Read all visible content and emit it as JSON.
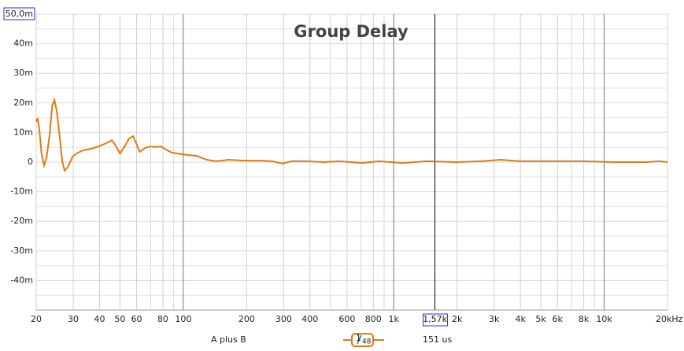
{
  "chart_data": {
    "type": "line",
    "title": "Group Delay",
    "xlog": true,
    "xlim": [
      20,
      20000
    ],
    "ylim": [
      -50,
      50
    ],
    "xticks": [
      20,
      30,
      40,
      50,
      60,
      80,
      100,
      200,
      300,
      400,
      600,
      800,
      {
        "value": 1000,
        "label": "1k"
      },
      {
        "value": 2000,
        "label": "2k"
      },
      {
        "value": 3000,
        "label": "3k"
      },
      {
        "value": 4000,
        "label": "4k"
      },
      {
        "value": 5000,
        "label": "5k"
      },
      {
        "value": 6000,
        "label": "6k"
      },
      {
        "value": 8000,
        "label": "8k"
      },
      {
        "value": 10000,
        "label": "10k"
      },
      {
        "value": 20000,
        "label": "20kHz"
      }
    ],
    "x_minor_grid": [
      70,
      90,
      500,
      700,
      900,
      7000,
      9000
    ],
    "yticks": [
      {
        "value": 50,
        "label": "50,0m"
      },
      {
        "value": 40,
        "label": "40m"
      },
      {
        "value": 30,
        "label": "30m"
      },
      {
        "value": 20,
        "label": "20m"
      },
      {
        "value": 10,
        "label": "10m"
      },
      0,
      {
        "value": -10,
        "label": "-10m"
      },
      {
        "value": -20,
        "label": "-20m"
      },
      {
        "value": -30,
        "label": "-30m"
      },
      {
        "value": -40,
        "label": "-40m"
      }
    ],
    "y_minor_grid": [
      45,
      35,
      25,
      15,
      5,
      -5,
      -15,
      -25,
      -35,
      -45
    ],
    "grid": true,
    "cursor": {
      "value": 1570,
      "label": "1,57k"
    },
    "smoothing": {
      "numerator": "1",
      "denominator": "48"
    },
    "readout": "151 us",
    "x": [
      20,
      20.3,
      20.7,
      21.2,
      21.8,
      22.4,
      23.2,
      23.8,
      24.4,
      25.0,
      25.9,
      26.6,
      27.3,
      28.3,
      29.8,
      30.8,
      33.3,
      36.3,
      39.6,
      43.1,
      45.8,
      47.4,
      50,
      52.6,
      55.3,
      57.8,
      59.9,
      62,
      65.8,
      69.3,
      73.6,
      78.2,
      82.4,
      88.3,
      98,
      105,
      116,
      129,
      144,
      164,
      195,
      232,
      264,
      296,
      328,
      390,
      463,
      551,
      710,
      848,
      1100,
      1422,
      2000,
      2605,
      3240,
      4000,
      5640,
      7960,
      11250,
      15900,
      18200,
      20000
    ],
    "series": [
      {
        "name": "A plus B",
        "color": "#e07b10",
        "values": [
          13.6,
          14.9,
          10.9,
          2.9,
          -1.1,
          1.6,
          9.6,
          18.9,
          21.0,
          17.6,
          8.2,
          0.3,
          -2.9,
          -1.6,
          1.9,
          2.7,
          4.0,
          4.5,
          5.3,
          6.4,
          7.4,
          5.9,
          2.9,
          5.3,
          8.0,
          8.8,
          6.1,
          3.5,
          4.8,
          5.3,
          5.1,
          5.3,
          4.3,
          3.2,
          2.7,
          2.4,
          2.1,
          0.8,
          0.3,
          0.8,
          0.5,
          0.5,
          0.3,
          -0.5,
          0.3,
          0.3,
          0,
          0.3,
          -0.3,
          0.3,
          -0.3,
          0.3,
          0,
          0.3,
          0.8,
          0.3,
          0.3,
          0.3,
          0,
          0,
          0.3,
          0
        ]
      }
    ]
  }
}
